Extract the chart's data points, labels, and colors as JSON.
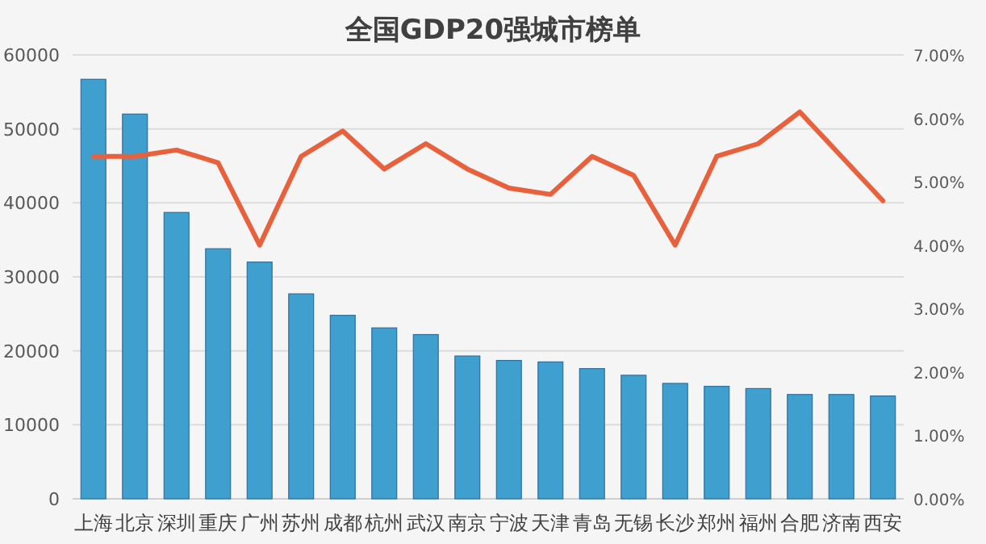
{
  "chart_data": {
    "type": "bar",
    "title": "全国GDP20强城市榜单",
    "categories": [
      "上海",
      "北京",
      "深圳",
      "重庆",
      "广州",
      "苏州",
      "成都",
      "杭州",
      "武汉",
      "南京",
      "宁波",
      "天津",
      "青岛",
      "无锡",
      "长沙",
      "郑州",
      "福州",
      "合肥",
      "济南",
      "西安"
    ],
    "series": [
      {
        "color": "#3f9fcf",
        "values": [
          56700,
          52000,
          38700,
          33800,
          32000,
          27700,
          24800,
          23100,
          22200,
          19300,
          18700,
          18500,
          17600,
          16700,
          15600,
          15200,
          14900,
          14100,
          14100,
          13900
        ]
      },
      {
        "type": "line",
        "axis": "y2",
        "color": "#e8603c",
        "values": [
          5.4,
          5.4,
          5.5,
          5.3,
          4.0,
          5.4,
          5.8,
          5.2,
          5.6,
          5.2,
          4.9,
          4.8,
          5.4,
          5.1,
          4.0,
          5.4,
          5.6,
          6.1,
          5.4,
          4.7
        ]
      }
    ],
    "ylim": [
      0,
      60000
    ],
    "yticks": [
      0,
      10000,
      20000,
      30000,
      40000,
      50000,
      60000
    ],
    "y2lim": [
      0,
      7
    ],
    "y2ticks": [
      {
        "value": 0,
        "label": "0.00%"
      },
      {
        "value": 1,
        "label": "1.00%"
      },
      {
        "value": 2,
        "label": "2.00%"
      },
      {
        "value": 3,
        "label": "3.00%"
      },
      {
        "value": 4,
        "label": "4.00%"
      },
      {
        "value": 5,
        "label": "5.00%"
      },
      {
        "value": 6,
        "label": "6.00%"
      },
      {
        "value": 7,
        "label": "7.00%"
      }
    ],
    "grid": "y",
    "line_style": "solid"
  }
}
